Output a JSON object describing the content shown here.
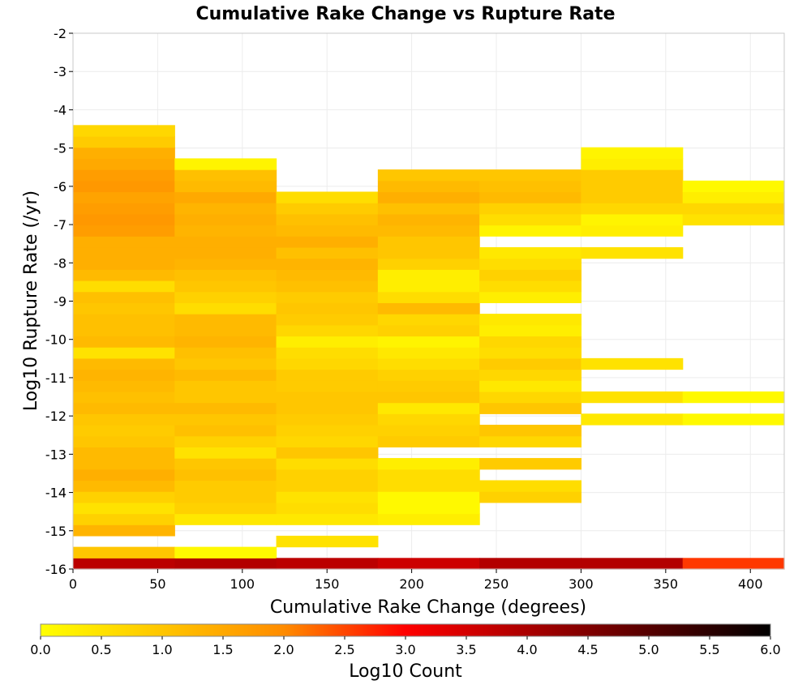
{
  "chart_data": {
    "type": "heatmap",
    "title": "Cumulative Rake Change vs Rupture Rate",
    "xlabel": "Cumulative Rake Change (degrees)",
    "ylabel": "Log10 Rupture Rate (/yr)",
    "colorbar_label": "Log10 Count",
    "xlim": [
      0,
      420
    ],
    "ylim": [
      -16,
      -2
    ],
    "x_ticks": [
      "0",
      "50",
      "100",
      "150",
      "200",
      "250",
      "300",
      "350",
      "400"
    ],
    "y_ticks": [
      "-2",
      "-3",
      "-4",
      "-5",
      "-6",
      "-7",
      "-8",
      "-9",
      "-10",
      "-11",
      "-12",
      "-13",
      "-14",
      "-15",
      "-16"
    ],
    "colorbar_ticks": [
      "0.0",
      "0.5",
      "1.0",
      "1.5",
      "2.0",
      "2.5",
      "3.0",
      "3.5",
      "4.0",
      "4.5",
      "5.0",
      "5.5",
      "6.0"
    ],
    "colorbar_range": [
      0,
      6
    ],
    "x_bin_width": 60,
    "y_bin_height": 0.29,
    "bin_x_starts": [
      0,
      60,
      120,
      180,
      240,
      300,
      360
    ],
    "bin_y_lower_edge": -16,
    "colormap": [
      "#ffff00",
      "#ff8c00",
      "#ff0000",
      "#800000",
      "#000000"
    ],
    "columns": [
      [
        3.8,
        1.0,
        0,
        1.3,
        0.8,
        0.5,
        0.8,
        1.2,
        1.4,
        1.2,
        1.2,
        1.0,
        0.9,
        1.0,
        1.2,
        1.1,
        1.2,
        1.3,
        1.2,
        0.5,
        1.2,
        1.1,
        1.1,
        1.0,
        1.1,
        0.6,
        1.2,
        1.4,
        1.4,
        1.4,
        1.7,
        1.8,
        1.7,
        1.6,
        1.8,
        1.7,
        1.5,
        1.4,
        0.9,
        0.7
      ],
      [
        3.9,
        0.1,
        0,
        0,
        0.4,
        0.8,
        0.9,
        0.9,
        1.1,
        1.0,
        0.5,
        0.8,
        1.1,
        1.0,
        1.2,
        1.0,
        1.0,
        1.2,
        1.0,
        1.1,
        1.3,
        1.2,
        1.2,
        0.6,
        0.8,
        1.0,
        1.1,
        1.3,
        1.4,
        1.4,
        1.3,
        1.4,
        1.3,
        1.5,
        1.2,
        1.1,
        0.2,
        0,
        0,
        0
      ],
      [
        3.8,
        0,
        0.5,
        0,
        0.4,
        0.6,
        0.5,
        0.8,
        0.8,
        0.6,
        1.0,
        0.7,
        0.8,
        0.9,
        1.0,
        1.0,
        0.9,
        0.9,
        0.7,
        0.6,
        0.3,
        0.7,
        0.9,
        1.0,
        0.9,
        1.1,
        1.2,
        1.3,
        1.1,
        1.4,
        1.2,
        1.1,
        0.9,
        0.6,
        0,
        0,
        0,
        0,
        0,
        0
      ],
      [
        3.6,
        0,
        0,
        0,
        0.3,
        0.1,
        0.1,
        0.6,
        0.6,
        0.3,
        0,
        0.9,
        0.8,
        0.7,
        0.4,
        1.0,
        0.9,
        0.8,
        0.6,
        0.4,
        0.2,
        0.8,
        0.7,
        1.2,
        0.6,
        0.3,
        0.3,
        0.8,
        1.0,
        1.0,
        1.2,
        1.3,
        1.1,
        1.4,
        1.2,
        1.0,
        0,
        0,
        0,
        0
      ],
      [
        3.9,
        0,
        0,
        0,
        0,
        0,
        0.8,
        0.6,
        0,
        0.9,
        0,
        0.7,
        1.0,
        0,
        1.0,
        0.7,
        0.4,
        0.7,
        0.9,
        0.6,
        0.7,
        0.3,
        0.4,
        0,
        0.3,
        0.6,
        0.8,
        0.6,
        0.4,
        0,
        0.2,
        0.6,
        0.8,
        1.2,
        1.1,
        1.0,
        0,
        0,
        0,
        0
      ],
      [
        3.9,
        0,
        0,
        0,
        0,
        0,
        0,
        0,
        0,
        0,
        0,
        0,
        0,
        0.4,
        0,
        0.5,
        0,
        0,
        0.5,
        0,
        0,
        0,
        0,
        0,
        0,
        0,
        0,
        0,
        0.5,
        0,
        0.3,
        0.2,
        0.7,
        0.9,
        0.9,
        0.9,
        0.3,
        0.2,
        0,
        0
      ],
      [
        2.6,
        0,
        0,
        0,
        0,
        0,
        0,
        0,
        0,
        0,
        0,
        0,
        0,
        0.1,
        0,
        0.1,
        0,
        0,
        0,
        0,
        0,
        0,
        0,
        0,
        0,
        0,
        0,
        0,
        0,
        0,
        0,
        0.5,
        0.7,
        0.3,
        0.1,
        0,
        0,
        0,
        0,
        0
      ]
    ]
  }
}
